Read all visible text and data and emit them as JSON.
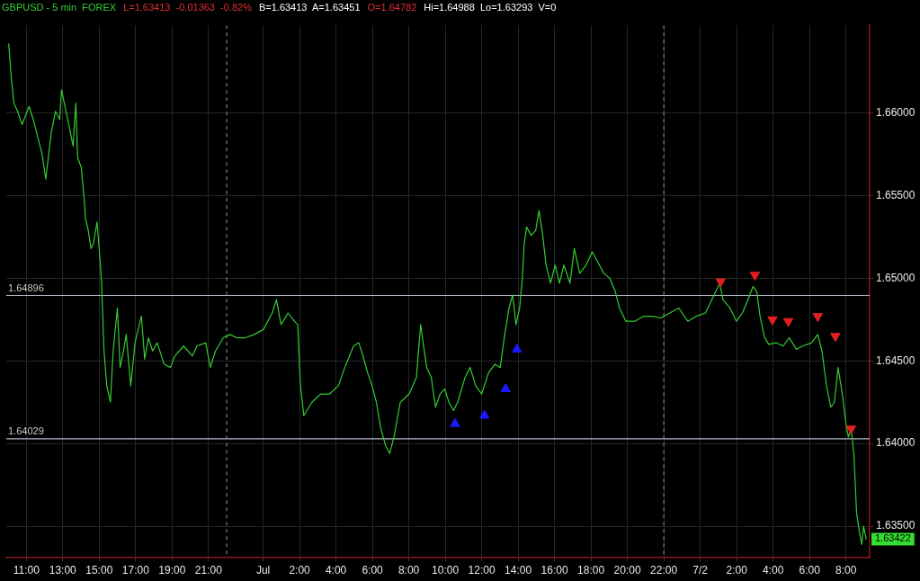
{
  "chart_data": {
    "type": "line",
    "title": "GBPUSD - 5 min  FOREX",
    "annotations": [
      "L=1.63413  -0.01363  -0.82%",
      "B=1.63413  A=1.63451",
      "O=1.64782",
      "Hi=1.64988  Lo=1.63293  V=0",
      {
        "text": "1.63422",
        "x": "--07-02T09:07",
        "y": 1.63422
      }
    ],
    "xlim": [
      "--06-30T09:54",
      "--07-02T09:18"
    ],
    "xticks": [
      {
        "value": "--06-30T11:00",
        "label": "11:00"
      },
      {
        "value": "--06-30T13:00",
        "label": "13:00"
      },
      {
        "value": "--06-30T15:00",
        "label": "15:00"
      },
      {
        "value": "--06-30T17:00",
        "label": "17:00"
      },
      {
        "value": "--06-30T19:00",
        "label": "19:00"
      },
      {
        "value": "--06-30T21:00",
        "label": "21:00"
      },
      {
        "value": "--07-01T00:00",
        "label": "Jul"
      },
      {
        "value": "--07-01T02:00",
        "label": "2:00"
      },
      {
        "value": "--07-01T04:00",
        "label": "4:00"
      },
      {
        "value": "--07-01T06:00",
        "label": "6:00"
      },
      {
        "value": "--07-01T08:00",
        "label": "8:00"
      },
      {
        "value": "--07-01T10:00",
        "label": "10:00"
      },
      {
        "value": "--07-01T12:00",
        "label": "12:00"
      },
      {
        "value": "--07-01T14:00",
        "label": "14:00"
      },
      {
        "value": "--07-01T16:00",
        "label": "16:00"
      },
      {
        "value": "--07-01T18:00",
        "label": "18:00"
      },
      {
        "value": "--07-01T20:00",
        "label": "20:00"
      },
      {
        "value": "--07-01T22:00",
        "label": "22:00"
      },
      {
        "value": "--07-02T00:00",
        "label": "7/2"
      },
      {
        "value": "--07-02T02:00",
        "label": "2:00"
      },
      {
        "value": "--07-02T04:00",
        "label": "4:00"
      },
      {
        "value": "--07-02T06:00",
        "label": "6:00"
      },
      {
        "value": "--07-02T08:00",
        "label": "8:00"
      }
    ],
    "ylim": [
      1.6331,
      1.6653
    ],
    "yticks": [
      {
        "value": 1.635,
        "label": "1.63500"
      },
      {
        "value": 1.64,
        "label": "1.64000"
      },
      {
        "value": 1.645,
        "label": "1.64500"
      },
      {
        "value": 1.65,
        "label": "1.65000"
      },
      {
        "value": 1.655,
        "label": "1.65500"
      },
      {
        "value": 1.66,
        "label": "1.66000"
      }
    ],
    "grid": true,
    "legend": false,
    "ref_lines": [
      {
        "axis": "y",
        "value": 1.64896,
        "label": "1.64896",
        "color": "#b4bccc"
      },
      {
        "axis": "y",
        "value": 1.64029,
        "label": "1.64029",
        "color": "#b4bccc"
      },
      {
        "axis": "x",
        "value": "--06-30T22:00",
        "color": "#808080",
        "line_style": "dashed"
      },
      {
        "axis": "x",
        "value": "--07-01T22:00",
        "color": "#808080",
        "line_style": "dashed"
      }
    ],
    "series": [
      {
        "color": "#33cc33",
        "x": [
          "--06-30T10:02",
          "--06-30T10:10",
          "--06-30T10:19",
          "--06-30T10:31",
          "--06-30T10:46",
          "--06-30T11:09",
          "--06-30T11:23",
          "--06-30T11:52",
          "--06-30T12:04",
          "--06-30T12:22",
          "--06-30T12:36",
          "--06-30T12:50",
          "--06-30T12:56",
          "--06-30T13:05",
          "--06-30T13:20",
          "--06-30T13:34",
          "--06-30T13:43",
          "--06-30T13:49",
          "--06-30T14:01",
          "--06-30T14:10",
          "--06-30T14:15",
          "--06-30T14:24",
          "--06-30T14:33",
          "--06-30T14:41",
          "--06-30T14:53",
          "--06-30T15:02",
          "--06-30T15:08",
          "--06-30T15:16",
          "--06-30T15:25",
          "--06-30T15:37",
          "--06-30T15:46",
          "--06-30T16:00",
          "--06-30T16:09",
          "--06-30T16:20",
          "--06-30T16:29",
          "--06-30T16:44",
          "--06-30T16:58",
          "--06-30T17:19",
          "--06-30T17:30",
          "--06-30T17:42",
          "--06-30T17:56",
          "--06-30T18:11",
          "--06-30T18:34",
          "--06-30T18:55",
          "--06-30T19:09",
          "--06-30T19:38",
          "--06-30T20:07",
          "--06-30T20:22",
          "--06-30T20:51",
          "--06-30T21:06",
          "--06-30T21:23",
          "--06-30T21:49",
          "--06-30T22:10",
          "--06-30T22:33",
          "--06-30T23:02",
          "--06-30T23:31",
          "--07-01T00:01",
          "--07-01T00:30",
          "--07-01T00:44",
          "--07-01T00:59",
          "--07-01T01:22",
          "--07-01T01:43",
          "--07-01T01:54",
          "--07-01T02:03",
          "--07-01T02:14",
          "--07-01T02:41",
          "--07-01T03:10",
          "--07-01T03:39",
          "--07-01T04:08",
          "--07-01T04:29",
          "--07-01T04:58",
          "--07-01T05:15",
          "--07-01T05:29",
          "--07-01T05:44",
          "--07-01T05:59",
          "--07-01T06:13",
          "--07-01T06:28",
          "--07-01T06:43",
          "--07-01T06:57",
          "--07-01T07:11",
          "--07-01T07:32",
          "--07-01T08:01",
          "--07-01T08:25",
          "--07-01T08:39",
          "--07-01T08:47",
          "--07-01T08:59",
          "--07-01T09:14",
          "--07-01T09:28",
          "--07-01T09:43",
          "--07-01T09:58",
          "--07-01T10:12",
          "--07-01T10:27",
          "--07-01T10:41",
          "--07-01T11:05",
          "--07-01T11:22",
          "--07-01T11:40",
          "--07-01T12:00",
          "--07-01T12:23",
          "--07-01T12:44",
          "--07-01T13:01",
          "--07-01T13:16",
          "--07-01T13:30",
          "--07-01T13:42",
          "--07-01T13:53",
          "--07-01T14:05",
          "--07-01T14:14",
          "--07-01T14:20",
          "--07-01T14:28",
          "--07-01T14:43",
          "--07-01T14:58",
          "--07-01T15:09",
          "--07-01T15:21",
          "--07-01T15:32",
          "--07-01T15:47",
          "--07-01T16:02",
          "--07-01T16:16",
          "--07-01T16:31",
          "--07-01T16:51",
          "--07-01T17:05",
          "--07-01T17:23",
          "--07-01T17:44",
          "--07-01T18:04",
          "--07-01T18:22",
          "--07-01T18:42",
          "--07-01T19:02",
          "--07-01T19:20",
          "--07-01T19:34",
          "--07-01T19:55",
          "--07-01T20:24",
          "--07-01T20:53",
          "--07-01T21:22",
          "--07-01T21:51",
          "--07-01T22:20",
          "--07-01T22:49",
          "--07-01T23:19",
          "--07-01T23:47",
          "--07-02T00:17",
          "--07-02T00:46",
          "--07-02T01:04",
          "--07-02T01:15",
          "--07-02T01:38",
          "--07-02T01:59",
          "--07-02T02:19",
          "--07-02T02:37",
          "--07-02T02:54",
          "--07-02T03:06",
          "--07-02T03:17",
          "--07-02T03:32",
          "--07-02T03:46",
          "--07-02T04:10",
          "--07-02T04:33",
          "--07-02T04:53",
          "--07-02T05:17",
          "--07-02T05:37",
          "--07-02T06:07",
          "--07-02T06:27",
          "--07-02T06:41",
          "--07-02T06:56",
          "--07-02T07:10",
          "--07-02T07:22",
          "--07-02T07:34",
          "--07-02T07:48",
          "--07-02T08:00",
          "--07-02T08:08",
          "--07-02T08:17",
          "--07-02T08:26",
          "--07-02T08:35",
          "--07-02T08:44",
          "--07-02T08:52",
          "--07-02T08:58",
          "--07-02T09:07"
        ],
        "values": [
          1.6642,
          1.6622,
          1.6606,
          1.6601,
          1.6593,
          1.6604,
          1.6596,
          1.6575,
          1.656,
          1.6588,
          1.6601,
          1.6596,
          1.6614,
          1.6606,
          1.6593,
          1.658,
          1.6606,
          1.6573,
          1.6567,
          1.6549,
          1.6536,
          1.6529,
          1.6518,
          1.6521,
          1.6534,
          1.6513,
          1.6497,
          1.6456,
          1.6435,
          1.6425,
          1.6456,
          1.6482,
          1.6446,
          1.6456,
          1.6466,
          1.6435,
          1.6461,
          1.6477,
          1.6451,
          1.6464,
          1.6456,
          1.6461,
          1.6448,
          1.6446,
          1.6453,
          1.6459,
          1.6453,
          1.6459,
          1.6461,
          1.6446,
          1.6456,
          1.6464,
          1.6466,
          1.6464,
          1.6464,
          1.6466,
          1.6469,
          1.6479,
          1.6487,
          1.6472,
          1.6479,
          1.6474,
          1.6472,
          1.6435,
          1.6417,
          1.6425,
          1.643,
          1.643,
          1.6435,
          1.6446,
          1.6459,
          1.6461,
          1.6453,
          1.6443,
          1.6435,
          1.6425,
          1.6409,
          1.6399,
          1.6394,
          1.6404,
          1.6425,
          1.643,
          1.644,
          1.6472,
          1.6461,
          1.6446,
          1.644,
          1.6422,
          1.643,
          1.6433,
          1.6425,
          1.642,
          1.6425,
          1.644,
          1.6446,
          1.6435,
          1.643,
          1.6443,
          1.6448,
          1.6446,
          1.6466,
          1.6482,
          1.649,
          1.6472,
          1.6482,
          1.65,
          1.6521,
          1.6531,
          1.6526,
          1.6529,
          1.6541,
          1.6526,
          1.6508,
          1.6497,
          1.6508,
          1.6497,
          1.6508,
          1.6497,
          1.6518,
          1.6503,
          1.6508,
          1.6516,
          1.651,
          1.6503,
          1.65,
          1.6492,
          1.6482,
          1.6474,
          1.6474,
          1.6477,
          1.6477,
          1.6476,
          1.6479,
          1.6482,
          1.6474,
          1.6477,
          1.6479,
          1.649,
          1.6497,
          1.6487,
          1.6482,
          1.6474,
          1.6479,
          1.6487,
          1.6495,
          1.6492,
          1.6477,
          1.6464,
          1.646,
          1.6461,
          1.6459,
          1.6464,
          1.6457,
          1.6459,
          1.6461,
          1.6466,
          1.6456,
          1.6435,
          1.6422,
          1.6425,
          1.6446,
          1.643,
          1.6412,
          1.6404,
          1.6409,
          1.6394,
          1.6358,
          1.6347,
          1.6339,
          1.635,
          1.6342
        ]
      },
      {
        "type": "scatter",
        "marker": "triangle",
        "color": "#1a1aff",
        "x": [
          "--07-01T10:32",
          "--07-01T12:09",
          "--07-01T13:19",
          "--07-01T13:56"
        ],
        "values": [
          1.6412,
          1.6417,
          1.6433,
          1.6457
        ]
      },
      {
        "type": "scatter",
        "marker": "triangle",
        "color": "#e02020",
        "x": [
          "--07-02T01:07",
          "--07-02T03:00",
          "--07-02T03:58",
          "--07-02T04:50",
          "--07-02T06:27",
          "--07-02T07:25",
          "--07-02T08:17"
        ],
        "values": [
          1.6498,
          1.6502,
          1.6475,
          1.6474,
          1.6477,
          1.6465,
          1.6409
        ]
      }
    ]
  }
}
